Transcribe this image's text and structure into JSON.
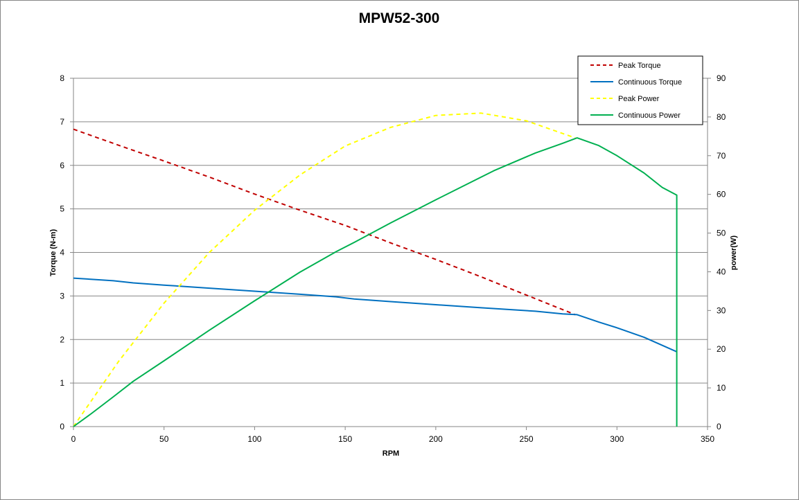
{
  "chart_data": {
    "type": "line",
    "title": "MPW52-300",
    "xlabel": "RPM",
    "ylabel": "Torque (N-m)",
    "y2label": "power(W)",
    "xlim": [
      0,
      350
    ],
    "ylim": [
      0,
      8
    ],
    "y2lim": [
      0,
      90
    ],
    "x_ticks": [
      "0",
      "50",
      "100",
      "150",
      "200",
      "250",
      "300",
      "350"
    ],
    "y_ticks": [
      "0",
      "1",
      "2",
      "3",
      "4",
      "5",
      "6",
      "7",
      "8"
    ],
    "y2_ticks": [
      "0",
      "10",
      "20",
      "30",
      "40",
      "50",
      "60",
      "70",
      "80",
      "90"
    ],
    "grid": "horizontal",
    "legend_position": "top-right",
    "series": [
      {
        "name": "Peak Torque",
        "axis": "left",
        "color": "#C00000",
        "style": "dashed",
        "x": [
          0,
          25,
          50,
          75,
          100,
          125,
          150,
          175,
          200,
          225,
          250,
          277
        ],
        "y": [
          6.83,
          6.46,
          6.1,
          5.73,
          5.34,
          4.97,
          4.62,
          4.22,
          3.84,
          3.44,
          3.02,
          2.57
        ]
      },
      {
        "name": "Continuous Torque",
        "axis": "left",
        "color": "#0070C0",
        "style": "solid",
        "x": [
          0,
          22,
          33,
          50,
          75,
          100,
          125,
          145,
          155,
          175,
          200,
          225,
          255,
          270,
          278,
          290,
          300,
          315,
          333
        ],
        "y": [
          3.41,
          3.35,
          3.3,
          3.25,
          3.18,
          3.11,
          3.04,
          2.98,
          2.93,
          2.87,
          2.8,
          2.73,
          2.65,
          2.59,
          2.57,
          2.4,
          2.27,
          2.05,
          1.72
        ]
      },
      {
        "name": "Peak Power",
        "axis": "right",
        "color": "#FFFF00",
        "style": "dashed",
        "x": [
          0,
          25,
          50,
          75,
          100,
          125,
          150,
          175,
          200,
          225,
          250,
          277
        ],
        "y": [
          0,
          16.9,
          31.9,
          45,
          55.9,
          65,
          72.5,
          77.3,
          80.4,
          81,
          79,
          74.6
        ]
      },
      {
        "name": "Continuous Power",
        "axis": "right",
        "color": "#00B050",
        "style": "solid",
        "x": [
          0,
          10,
          22,
          33,
          50,
          75,
          100,
          125,
          145,
          155,
          175,
          200,
          232,
          255,
          270,
          278,
          290,
          300,
          315,
          325,
          333,
          333
        ],
        "y": [
          0,
          3.4,
          7.7,
          11.7,
          17,
          24.9,
          32.5,
          39.9,
          45.2,
          47.6,
          52.6,
          58.6,
          66.1,
          70.7,
          73.2,
          74.6,
          72.6,
          70,
          65.5,
          61.8,
          59.8,
          0
        ]
      }
    ]
  }
}
